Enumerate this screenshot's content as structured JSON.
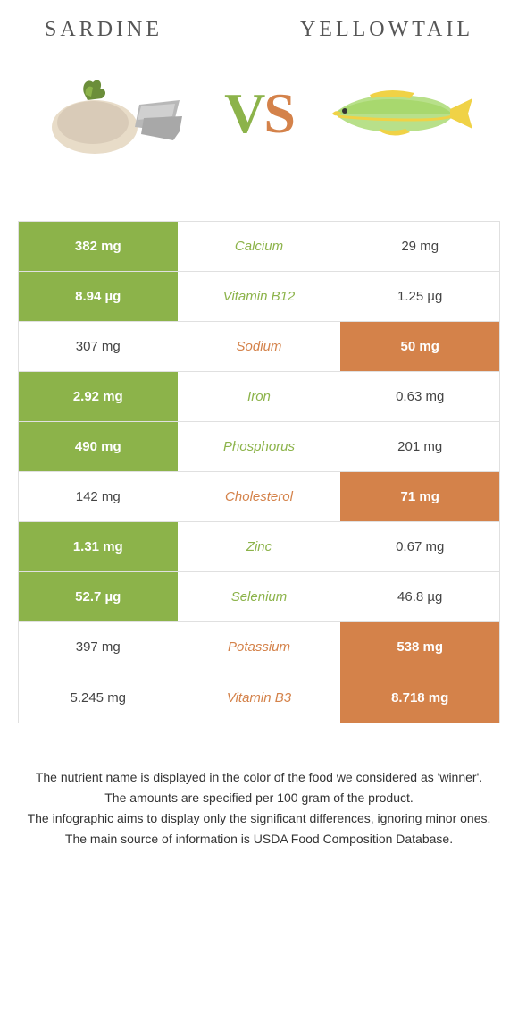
{
  "header": {
    "left_title": "Sardine",
    "right_title": "Yellowtail",
    "vs_v": "V",
    "vs_s": "S"
  },
  "colors": {
    "green": "#8cb34a",
    "orange": "#d4824a",
    "border": "#e0e0e0",
    "text": "#333333",
    "white": "#ffffff"
  },
  "table": {
    "rows": [
      {
        "label": "Calcium",
        "left": "382 mg",
        "right": "29 mg",
        "winner": "left"
      },
      {
        "label": "Vitamin B12",
        "left": "8.94 µg",
        "right": "1.25 µg",
        "winner": "left"
      },
      {
        "label": "Sodium",
        "left": "307 mg",
        "right": "50 mg",
        "winner": "right"
      },
      {
        "label": "Iron",
        "left": "2.92 mg",
        "right": "0.63 mg",
        "winner": "left"
      },
      {
        "label": "Phosphorus",
        "left": "490 mg",
        "right": "201 mg",
        "winner": "left"
      },
      {
        "label": "Cholesterol",
        "left": "142 mg",
        "right": "71 mg",
        "winner": "right"
      },
      {
        "label": "Zinc",
        "left": "1.31 mg",
        "right": "0.67 mg",
        "winner": "left"
      },
      {
        "label": "Selenium",
        "left": "52.7 µg",
        "right": "46.8 µg",
        "winner": "left"
      },
      {
        "label": "Potassium",
        "left": "397 mg",
        "right": "538 mg",
        "winner": "right"
      },
      {
        "label": "Vitamin B3",
        "left": "5.245 mg",
        "right": "8.718 mg",
        "winner": "right"
      }
    ]
  },
  "footnotes": {
    "l1": "The nutrient name is displayed in the color of the food we considered as 'winner'.",
    "l2": "The amounts are specified per 100 gram of the product.",
    "l3": "The infographic aims to display only the significant differences, ignoring minor ones.",
    "l4": "The main source of information is USDA Food Composition Database."
  },
  "illustrations": {
    "sardine": {
      "body_color": "#d9cbb8",
      "fin_color": "#6b8e3a",
      "accent": "#a0a0a0"
    },
    "yellowtail": {
      "body_color": "#a8d86e",
      "fin_color": "#f0d246",
      "accent": "#4a90c2"
    }
  }
}
